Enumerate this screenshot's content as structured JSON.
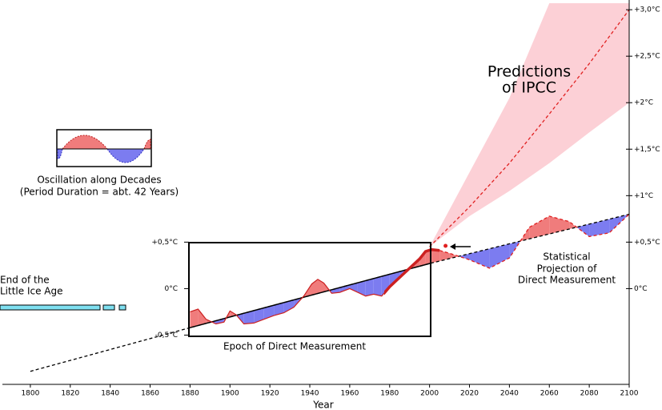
{
  "chart_data": {
    "type": "line",
    "xlabel": "Year",
    "xlim": [
      1786,
      2100
    ],
    "xticks": [
      1800,
      1820,
      1840,
      1860,
      1880,
      1900,
      1920,
      1940,
      1960,
      1980,
      2000,
      2020,
      2040,
      2060,
      2080,
      2100
    ],
    "ylim": [
      -1.03,
      3.07
    ],
    "yticks": [
      {
        "value": 3,
        "label": "+3,0°C"
      },
      {
        "value": 2.5,
        "label": "+2,5°C"
      },
      {
        "value": 2,
        "label": "+2°C"
      },
      {
        "value": 1.5,
        "label": "+1,5°C"
      },
      {
        "value": 1,
        "label": "+1°C"
      },
      {
        "value": 0.5,
        "label": "+0,5°C"
      },
      {
        "value": 0,
        "label": "0°C"
      }
    ],
    "inner_yticks": [
      {
        "value": 0.5,
        "label": "+0,5°C"
      },
      {
        "value": 0,
        "label": "0°C"
      },
      {
        "value": -0.5,
        "label": "-0,5°C"
      }
    ],
    "above_color": "#f07c7c",
    "below_color": "#7c7cf0",
    "series": [
      {
        "color": "#000000",
        "x": [
          1800,
          1880,
          2000,
          2100
        ],
        "values": [
          -0.89,
          -0.42,
          0.27,
          0.8
        ]
      },
      {
        "color": "#cc2020",
        "x": [
          1880,
          1884,
          1888,
          1893,
          1897,
          1900,
          1903,
          1907,
          1912,
          1917,
          1922,
          1927,
          1932,
          1937,
          1941,
          1944,
          1947,
          1951,
          1955,
          1960,
          1964,
          1968,
          1972,
          1976,
          1980,
          1985,
          1990,
          1995,
          1998,
          2001,
          2005
        ],
        "values": [
          -0.25,
          -0.22,
          -0.33,
          -0.38,
          -0.36,
          -0.24,
          -0.28,
          -0.38,
          -0.37,
          -0.33,
          -0.29,
          -0.26,
          -0.2,
          -0.08,
          0.05,
          0.1,
          0.06,
          -0.05,
          -0.04,
          0.0,
          -0.04,
          -0.08,
          -0.06,
          -0.08,
          0.02,
          0.12,
          0.22,
          0.32,
          0.4,
          0.42,
          0.41
        ]
      },
      {
        "color": "#e02020",
        "x": [
          2005,
          2010,
          2020,
          2030,
          2040,
          2050,
          2060,
          2070,
          2080,
          2090,
          2100
        ],
        "values": [
          0.41,
          0.38,
          0.31,
          0.22,
          0.33,
          0.66,
          0.78,
          0.72,
          0.56,
          0.6,
          0.8
        ]
      },
      {
        "color": "#e02020",
        "x": [
          2000,
          2020,
          2040,
          2060,
          2080,
          2100
        ],
        "values": [
          0.45,
          0.88,
          1.35,
          1.88,
          2.42,
          3.0
        ]
      }
    ],
    "band": {
      "color": "#fcd0d6",
      "x": [
        2000,
        2020,
        2040,
        2060,
        2080,
        2100
      ],
      "upper": [
        0.45,
        1.25,
        2.05,
        3.07,
        3.07,
        3.07
      ],
      "lower": [
        0.45,
        0.78,
        1.05,
        1.35,
        1.68,
        2.0
      ]
    },
    "current_point": {
      "x": 2008,
      "value": 0.46,
      "color": "#e02020"
    },
    "ipcc_label": [
      "Predictions",
      "of IPCC"
    ],
    "projection_label": [
      "Statistical",
      "Projection of",
      "Direct Measurement"
    ],
    "epoch_label": "Epoch of Direct Measurement",
    "ice_age_label": [
      "End of the",
      "Little Ice Age"
    ],
    "oscillation_label": [
      "Oscillation along Decades",
      "(Period Duration = abt. 42 Years)"
    ]
  }
}
